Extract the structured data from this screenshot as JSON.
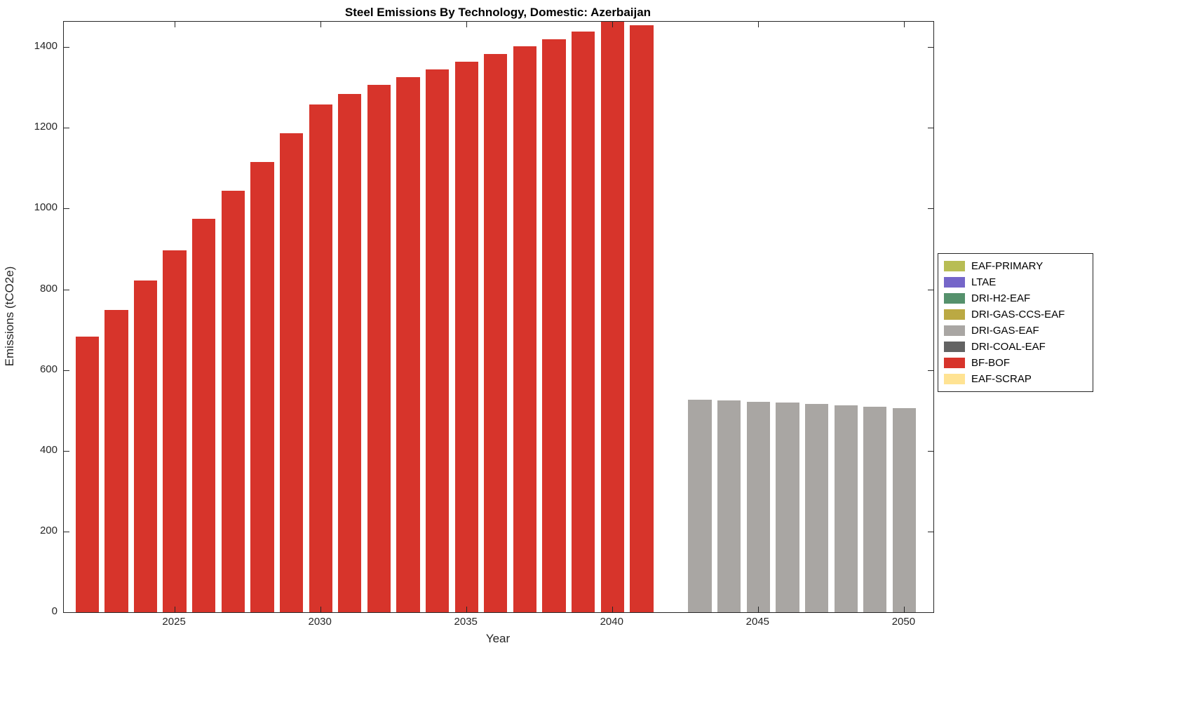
{
  "chart_data": {
    "type": "bar",
    "title": "Steel Emissions By Technology, Domestic: Azerbaijan",
    "xlabel": "Year",
    "ylabel": "Emissions (tCO2e)",
    "xlim": [
      2021.2,
      2051
    ],
    "ylim": [
      0,
      1463
    ],
    "yticks": [
      0,
      200,
      400,
      600,
      800,
      1000,
      1200,
      1400
    ],
    "xticks": [
      2025,
      2030,
      2035,
      2040,
      2045,
      2050
    ],
    "bar_width": 0.8,
    "grid": false,
    "legend_position": "right-outside",
    "series": [
      {
        "name": "BF-BOF",
        "color": "#d7342b",
        "years": [
          2022,
          2023,
          2024,
          2025,
          2026,
          2027,
          2028,
          2029,
          2030,
          2031,
          2032,
          2033,
          2034,
          2035,
          2036,
          2037,
          2038,
          2039,
          2040,
          2041
        ],
        "values": [
          683,
          749,
          822,
          897,
          975,
          1045,
          1115,
          1186,
          1258,
          1284,
          1307,
          1326,
          1345,
          1364,
          1383,
          1402,
          1420,
          1439,
          1463,
          1455
        ]
      },
      {
        "name": "DRI-GAS-EAF",
        "color": "#a9a6a3",
        "years": [
          2043,
          2044,
          2045,
          2046,
          2047,
          2048,
          2049,
          2050
        ],
        "values": [
          526,
          524,
          521,
          519,
          516,
          512,
          509,
          505
        ]
      }
    ],
    "legend": [
      {
        "label": "EAF-PRIMARY",
        "color": "#b8bd54"
      },
      {
        "label": "LTAE",
        "color": "#7566c9"
      },
      {
        "label": "DRI-H2-EAF",
        "color": "#55916c"
      },
      {
        "label": "DRI-GAS-CCS-EAF",
        "color": "#bba943"
      },
      {
        "label": "DRI-GAS-EAF",
        "color": "#a9a6a3"
      },
      {
        "label": "DRI-COAL-EAF",
        "color": "#636363"
      },
      {
        "label": "BF-BOF",
        "color": "#d7342b"
      },
      {
        "label": "EAF-SCRAP",
        "color": "#ffe393"
      }
    ]
  }
}
